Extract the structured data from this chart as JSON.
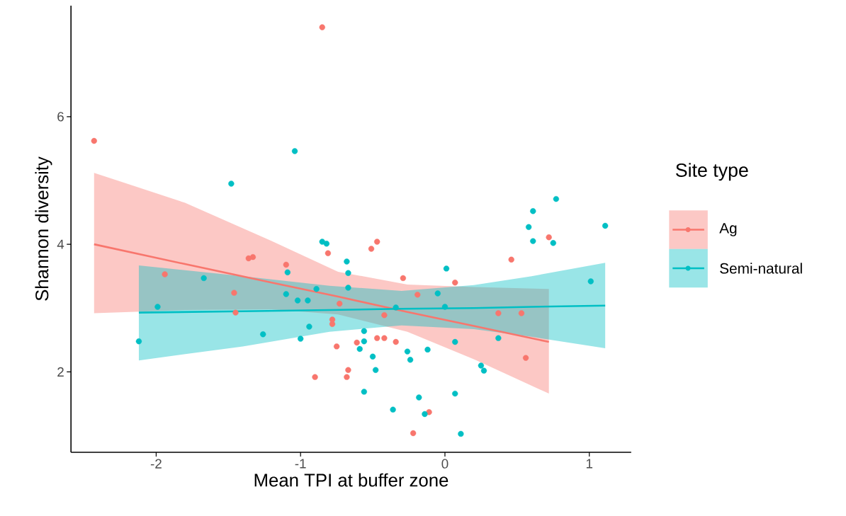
{
  "chart_data": {
    "type": "scatter",
    "xlabel": "Mean TPI at buffer zone",
    "ylabel": "Shannon diversity",
    "legend_title": "Site type",
    "xlim": [
      -2.59,
      1.29
    ],
    "ylim": [
      0.74,
      7.74
    ],
    "xticks": [
      -2,
      -1,
      0,
      1
    ],
    "yticks": [
      2,
      4,
      6
    ],
    "legend": "right",
    "marker": "circle",
    "series": [
      {
        "name": "Ag",
        "color": "#f8766d",
        "x": [
          -2.43,
          -0.85,
          -1.36,
          -1.33,
          -1.1,
          -0.81,
          -0.75,
          -0.9,
          -0.68,
          -0.67,
          -0.51,
          -0.47,
          -0.29,
          0.07,
          0.46,
          0.72,
          0.56,
          -0.61,
          -0.47,
          -0.42,
          -0.34,
          -0.11,
          -0.22,
          -1.94,
          -1.46,
          -1.45,
          -0.78,
          -0.78,
          -0.73,
          -0.19,
          -0.42,
          0.37,
          0.53
        ],
        "values": [
          5.62,
          7.4,
          3.78,
          3.8,
          3.68,
          3.86,
          2.4,
          1.92,
          1.92,
          2.03,
          3.93,
          4.04,
          3.47,
          3.4,
          3.76,
          4.11,
          2.22,
          2.46,
          2.53,
          2.53,
          2.47,
          1.37,
          1.04,
          3.53,
          3.24,
          2.93,
          2.82,
          2.75,
          3.07,
          3.21,
          2.89,
          2.92,
          2.92
        ]
      },
      {
        "name": "Semi-natural",
        "color": "#00bfc4",
        "x": [
          -2.12,
          -1.99,
          -1.67,
          -1.48,
          -1.26,
          -1.04,
          -1.1,
          -1.09,
          -1.02,
          -0.95,
          -0.94,
          -1.0,
          -0.85,
          -0.82,
          -0.68,
          -0.67,
          -0.89,
          -0.67,
          -0.56,
          -0.56,
          -0.59,
          -0.5,
          -0.48,
          -0.56,
          -0.26,
          -0.24,
          -0.12,
          -0.36,
          -0.18,
          -0.14,
          0.07,
          0.11,
          0.01,
          0.25,
          0.27,
          0.58,
          0.61,
          0.61,
          0.77,
          0.75,
          1.11,
          1.01,
          -0.05,
          0.07,
          0.37,
          -0.34,
          0.0
        ],
        "values": [
          2.48,
          3.02,
          3.47,
          4.95,
          2.59,
          5.46,
          3.22,
          3.56,
          3.12,
          3.12,
          2.71,
          2.52,
          4.04,
          4.01,
          3.73,
          3.55,
          3.3,
          3.32,
          2.64,
          2.48,
          2.36,
          2.24,
          2.03,
          1.69,
          2.32,
          2.19,
          2.35,
          1.41,
          1.6,
          1.34,
          1.66,
          1.03,
          3.62,
          2.1,
          2.02,
          4.27,
          4.52,
          4.05,
          4.71,
          4.02,
          4.29,
          3.42,
          3.23,
          2.47,
          2.53,
          3.01,
          3.02
        ]
      },
      {
        "type": "line",
        "marker": "none",
        "color": "#f8766d",
        "x": [
          -2.43,
          -1.8,
          -1.2,
          -0.74,
          -0.26,
          0.2,
          0.72
        ],
        "values": [
          4.0,
          3.69,
          3.4,
          3.18,
          2.94,
          2.72,
          2.47
        ],
        "lower": [
          2.92,
          2.97,
          2.98,
          2.9,
          2.63,
          2.2,
          1.66
        ],
        "upper": [
          5.12,
          4.65,
          4.05,
          3.57,
          3.37,
          3.33,
          3.3
        ]
      },
      {
        "type": "line",
        "marker": "none",
        "color": "#00bfc4",
        "x": [
          -2.12,
          -1.4,
          -0.8,
          -0.3,
          0.2,
          0.6,
          1.11
        ],
        "values": [
          2.93,
          2.95,
          2.97,
          2.99,
          3.0,
          3.02,
          3.04
        ],
        "lower": [
          2.18,
          2.4,
          2.63,
          2.73,
          2.67,
          2.55,
          2.37
        ],
        "upper": [
          3.67,
          3.5,
          3.35,
          3.27,
          3.36,
          3.5,
          3.71
        ]
      }
    ]
  }
}
